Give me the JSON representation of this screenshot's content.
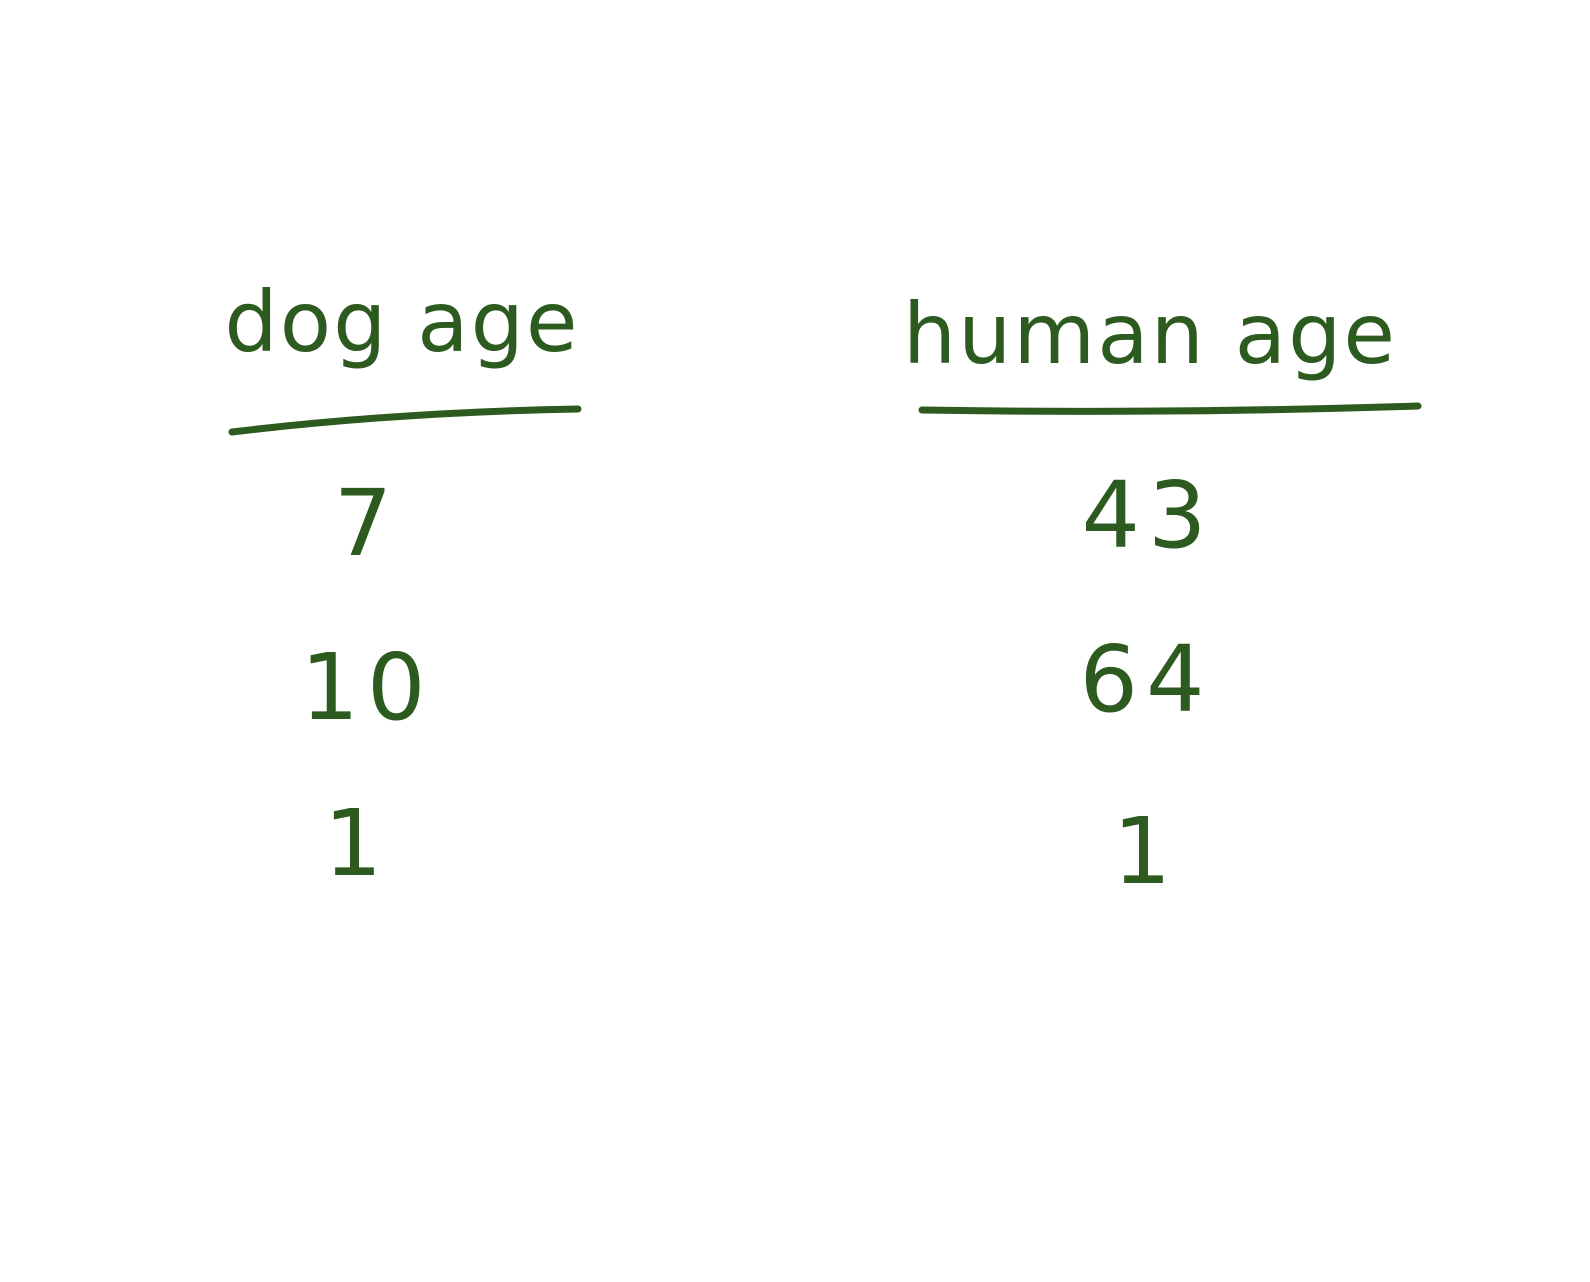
{
  "table": {
    "columns": [
      "dog age",
      "human age"
    ],
    "rows": [
      [
        "7",
        "43"
      ],
      [
        "10",
        "64"
      ],
      [
        "1",
        "1"
      ]
    ]
  },
  "colors": {
    "ink": "#2c5a1f",
    "background": "#ffffff"
  }
}
